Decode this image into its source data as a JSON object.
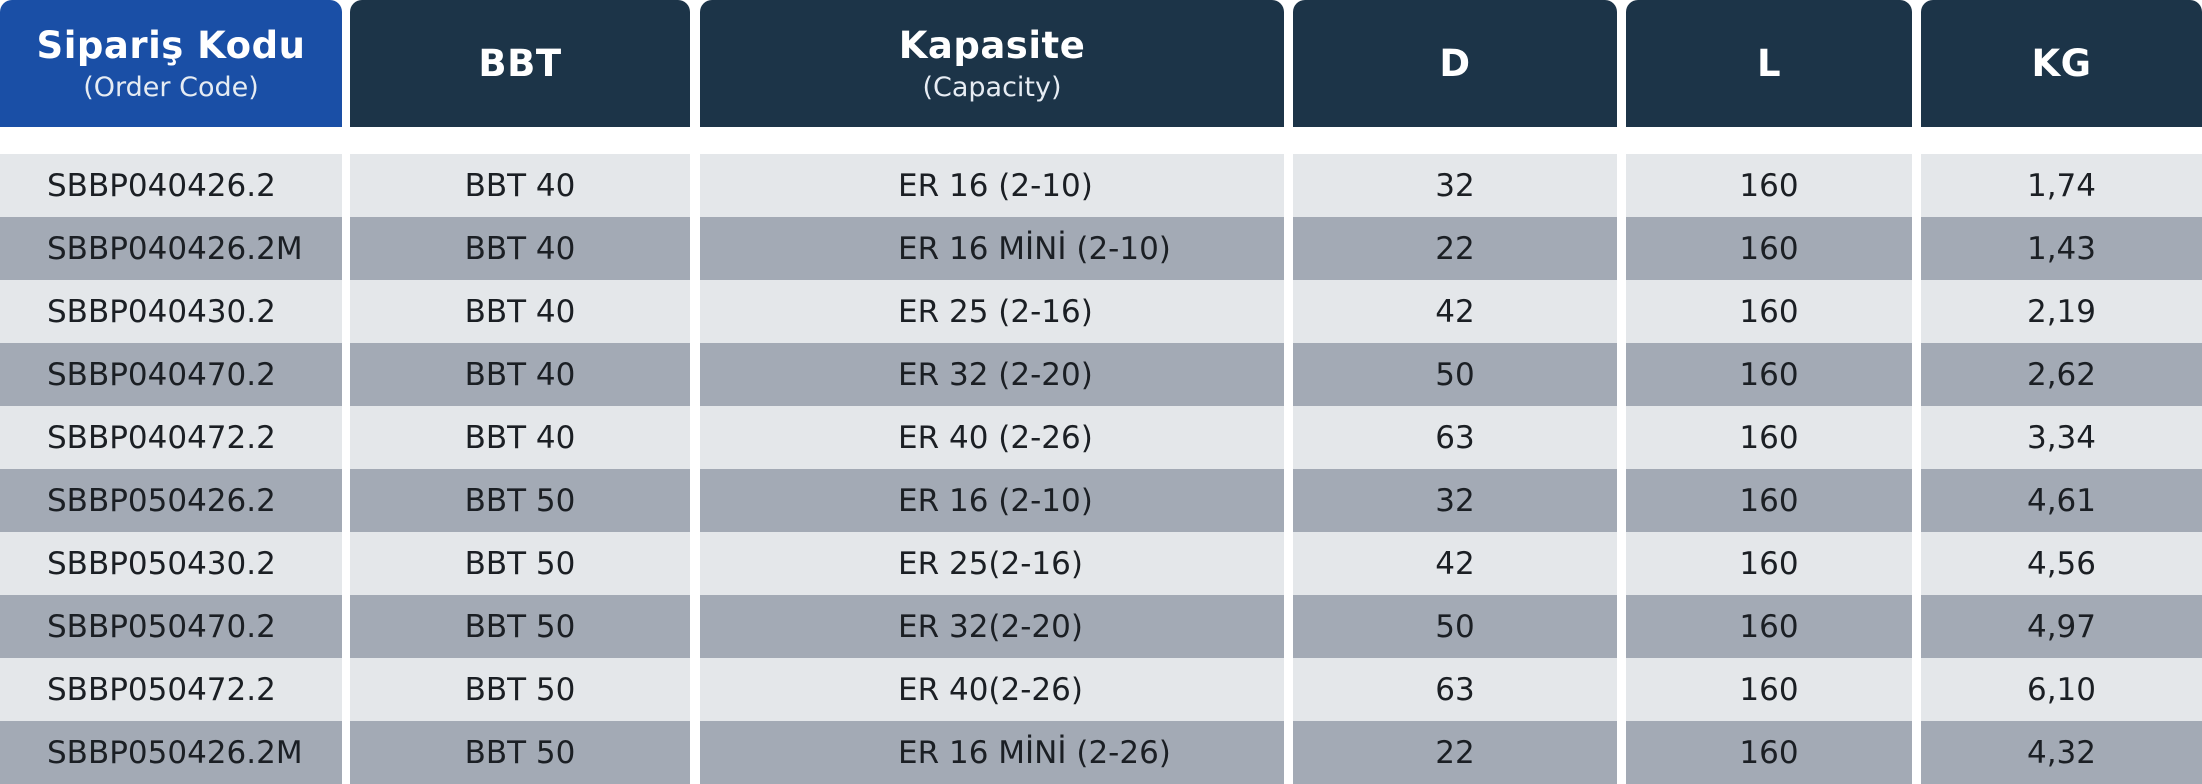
{
  "table": {
    "headers": [
      {
        "title": "Sipariş Kodu",
        "subtitle": "(Order Code)"
      },
      {
        "title": "BBT",
        "subtitle": ""
      },
      {
        "title": "Kapasite",
        "subtitle": "(Capacity)"
      },
      {
        "title": "D",
        "subtitle": ""
      },
      {
        "title": "L",
        "subtitle": ""
      },
      {
        "title": "KG",
        "subtitle": ""
      }
    ],
    "rows": [
      {
        "code": "SBBP040426.2",
        "bbt": "BBT 40",
        "capacity": "ER 16 (2-10)",
        "d": "32",
        "l": "160",
        "kg": "1,74"
      },
      {
        "code": "SBBP040426.2M",
        "bbt": "BBT 40",
        "capacity": "ER 16 MİNİ (2-10)",
        "d": "22",
        "l": "160",
        "kg": "1,43"
      },
      {
        "code": "SBBP040430.2",
        "bbt": "BBT 40",
        "capacity": "ER 25 (2-16)",
        "d": "42",
        "l": "160",
        "kg": "2,19"
      },
      {
        "code": "SBBP040470.2",
        "bbt": "BBT 40",
        "capacity": "ER 32 (2-20)",
        "d": "50",
        "l": "160",
        "kg": "2,62"
      },
      {
        "code": "SBBP040472.2",
        "bbt": "BBT 40",
        "capacity": "ER 40 (2-26)",
        "d": "63",
        "l": "160",
        "kg": "3,34"
      },
      {
        "code": "SBBP050426.2",
        "bbt": "BBT 50",
        "capacity": "ER 16 (2-10)",
        "d": "32",
        "l": "160",
        "kg": "4,61"
      },
      {
        "code": "SBBP050430.2",
        "bbt": "BBT 50",
        "capacity": "ER 25(2-16)",
        "d": "42",
        "l": "160",
        "kg": "4,56"
      },
      {
        "code": "SBBP050470.2",
        "bbt": "BBT 50",
        "capacity": "ER 32(2-20)",
        "d": "50",
        "l": "160",
        "kg": "4,97"
      },
      {
        "code": "SBBP050472.2",
        "bbt": "BBT 50",
        "capacity": "ER 40(2-26)",
        "d": "63",
        "l": "160",
        "kg": "6,10"
      },
      {
        "code": "SBBP050426.2M",
        "bbt": "BBT 50",
        "capacity": "ER 16 MİNİ (2-26)",
        "d": "22",
        "l": "160",
        "kg": "4,32"
      }
    ]
  },
  "colors": {
    "header": "#1c3448",
    "header_accent": "#1a4fa6",
    "row_light": "#e4e7ea",
    "row_dark": "#a3aab5"
  }
}
